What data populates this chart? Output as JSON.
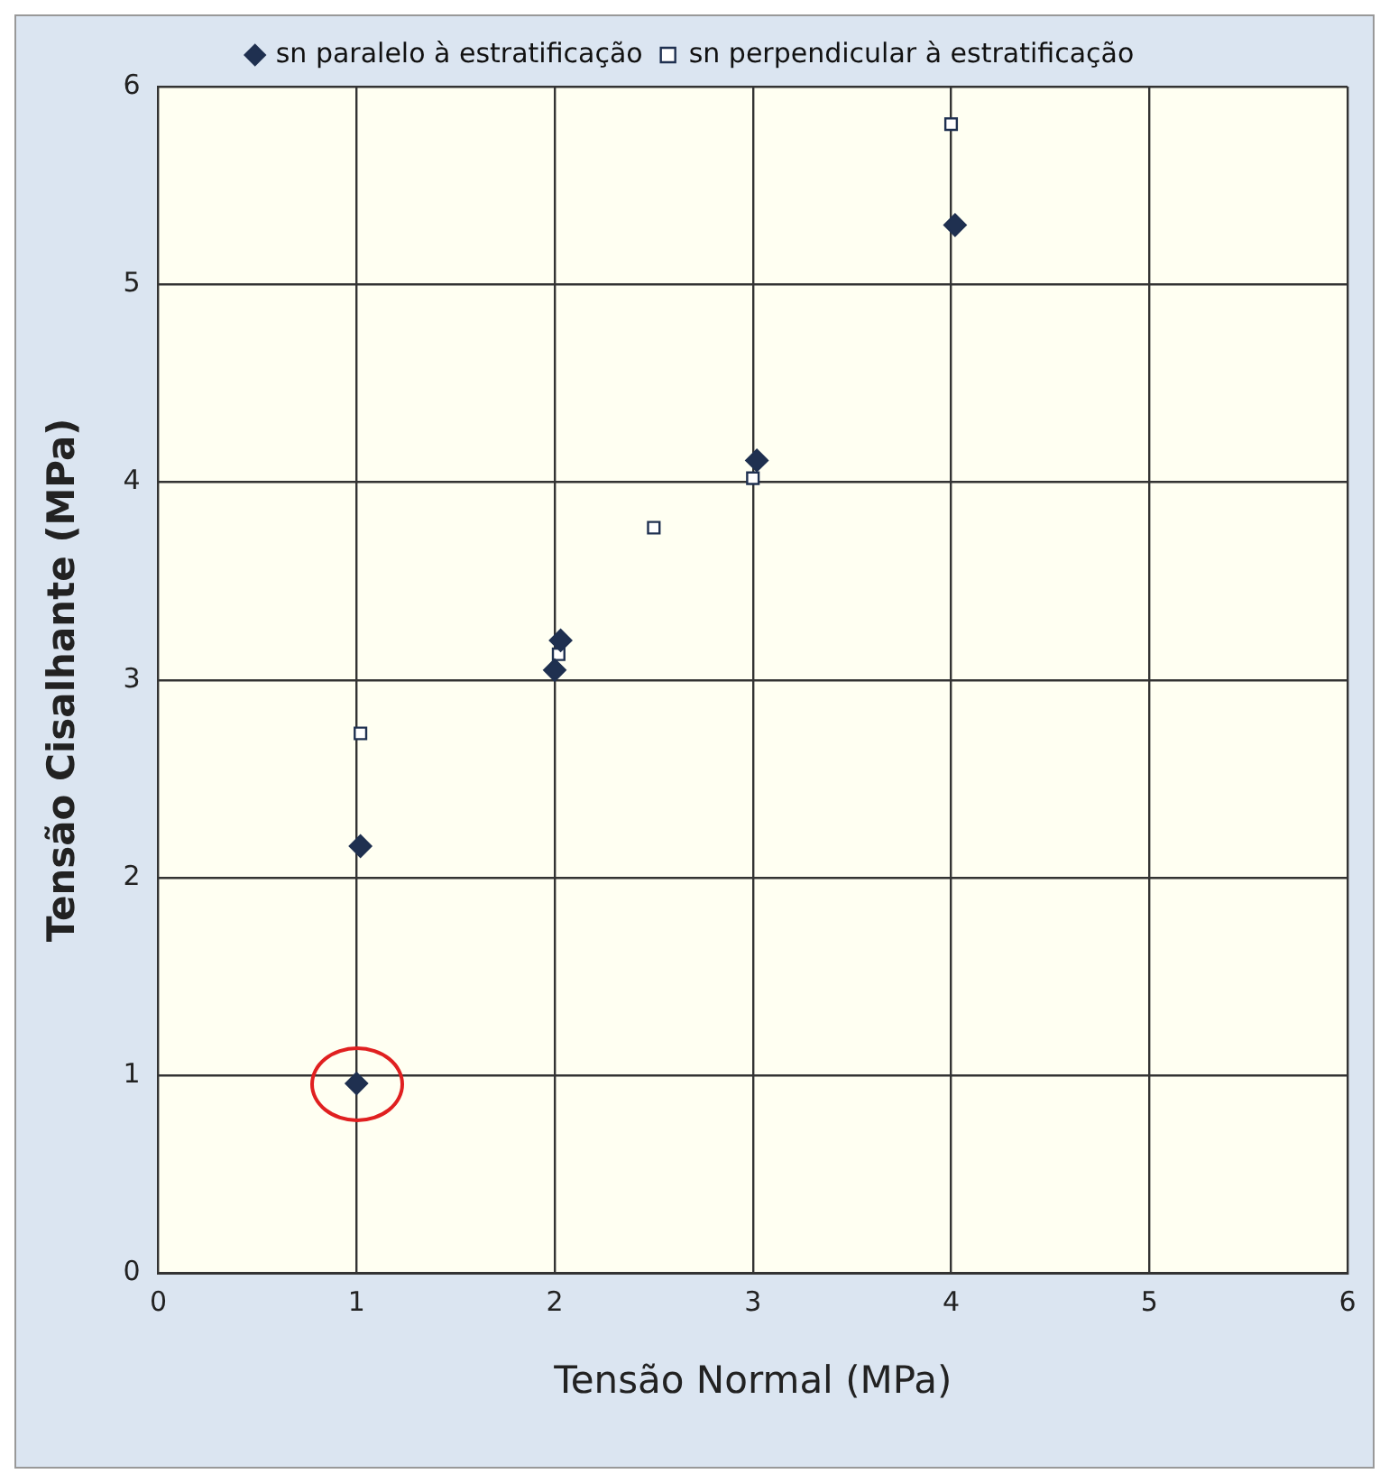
{
  "chart_data": {
    "type": "scatter",
    "xlabel": "Tensão Normal (MPa)",
    "ylabel": "Tensão Cisalhante (MPa)",
    "xlim": [
      0,
      6
    ],
    "xticks": [
      0,
      1,
      2,
      3,
      4,
      5,
      6
    ],
    "ylim": [
      0,
      6
    ],
    "yticks": [
      0,
      1,
      2,
      3,
      4,
      5,
      6
    ],
    "grid": true,
    "legend": "top",
    "series": [
      {
        "name": "sn paralelo à estratificação",
        "color": "#1f3050",
        "marker": "diamond",
        "x": [
          1.0,
          1.02,
          2.0,
          2.03,
          3.02,
          4.02
        ],
        "values": [
          0.96,
          2.16,
          3.05,
          3.2,
          4.11,
          5.3
        ]
      },
      {
        "name": "sn perpendicular à estratificação",
        "color": "#1f3050",
        "marker": "square",
        "x": [
          1.02,
          2.02,
          2.5,
          3.0,
          4.0
        ],
        "values": [
          2.73,
          3.13,
          3.77,
          4.02,
          5.81
        ]
      }
    ]
  }
}
